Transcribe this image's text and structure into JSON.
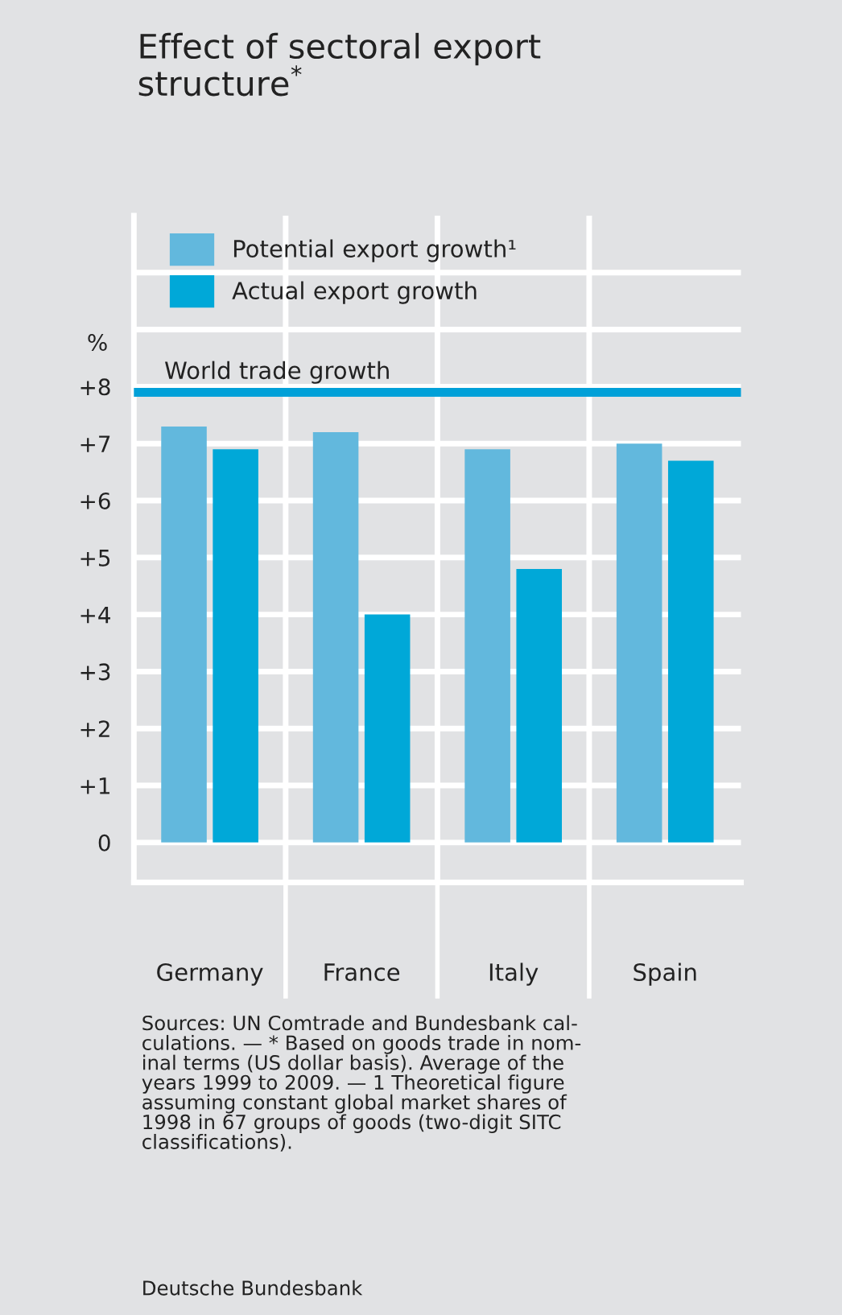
{
  "chart_data": {
    "type": "bar",
    "title": "Effect of sectoral export\nstructure$^{*}$",
    "ylabel": "%",
    "categories": [
      "Germany",
      "France",
      "Italy",
      "Spain"
    ],
    "series": [
      {
        "name": "Potential export growth¹",
        "color": "#62b8dd",
        "values": [
          7.3,
          7.2,
          6.9,
          7.0
        ]
      },
      {
        "name": "Actual export growth",
        "color": "#00a8d8",
        "values": [
          6.9,
          4.0,
          4.8,
          6.7
        ]
      }
    ],
    "ylim": [
      -0.7,
      11
    ],
    "yticks": [
      0,
      {
        "value": 1,
        "label": "+1"
      },
      {
        "value": 2,
        "label": "+2"
      },
      {
        "value": 3,
        "label": "+3"
      },
      {
        "value": 4,
        "label": "+4"
      },
      {
        "value": 5,
        "label": "+5"
      },
      {
        "value": 6,
        "label": "+6"
      },
      {
        "value": 7,
        "label": "+7"
      },
      {
        "value": 8,
        "label": "+8"
      },
      {
        "value": 9,
        "label": null
      },
      {
        "value": 10,
        "label": null
      }
    ],
    "ref_lines": [
      {
        "axis": "y",
        "value": 7.9,
        "label": "World trade growth",
        "color": "#00a0d8"
      }
    ],
    "grid": true,
    "legend": "top left",
    "annotations": [
      "Sources: UN Comtrade and Bundesbank cal-\nculations. — * Based on goods trade in nom-\ninal terms (US dollar basis). Average of the\nyears 1999 to 2009. — 1 Theoretical figure\nassuming constant global market shares of\n1998 in 67 groups of goods (two-digit SITC\nclassifications).",
      "Deutsche Bundesbank"
    ]
  }
}
